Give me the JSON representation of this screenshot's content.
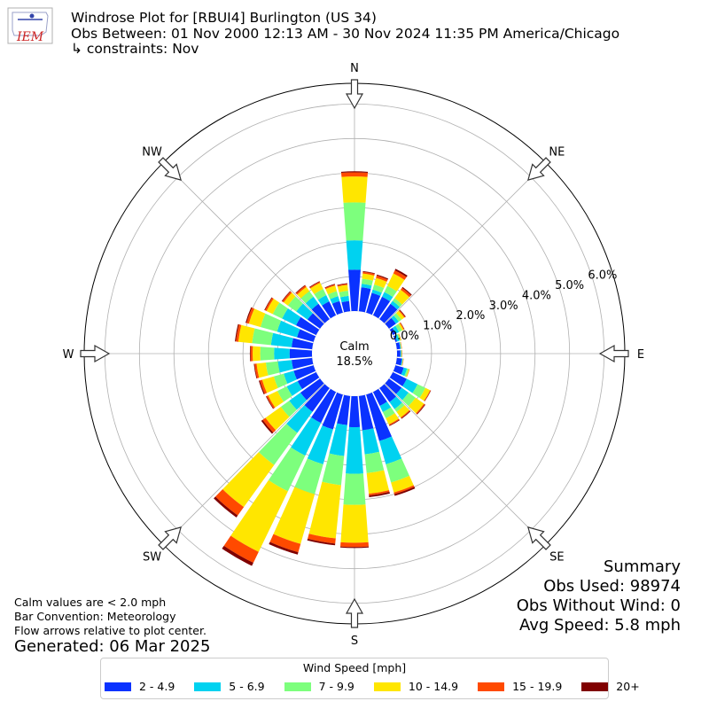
{
  "logo": {
    "text": "IEM"
  },
  "header": {
    "title": "Windrose Plot for [RBUI4] Burlington (US 34)",
    "obs_between": "Obs Between: 01 Nov 2000 12:13 AM - 30 Nov 2024 11:35 PM America/Chicago",
    "constraints": "↳ constraints: Nov"
  },
  "summary": {
    "heading": "Summary",
    "obs_used": "Obs Used: 98974",
    "obs_without_wind": "Obs Without Wind: 0",
    "avg_speed": "Avg Speed: 5.8 mph"
  },
  "notes": {
    "calm_def": "Calm values are < 2.0 mph",
    "bar_convention": "Bar Convention: Meteorology",
    "flow_arrows": "Flow arrows relative to plot center.",
    "generated": "Generated: 06 Mar 2025"
  },
  "legend": {
    "title": "Wind Speed [mph]",
    "items": [
      {
        "label": "2 - 4.9",
        "color": "#0a32ff"
      },
      {
        "label": "5 - 6.9",
        "color": "#00d2f0"
      },
      {
        "label": "7 - 9.9",
        "color": "#7dff7d"
      },
      {
        "label": "10 - 14.9",
        "color": "#ffe600"
      },
      {
        "label": "15 - 19.9",
        "color": "#ff4a00"
      },
      {
        "label": "20+",
        "color": "#800000"
      }
    ]
  },
  "chart_data": {
    "type": "windrose",
    "title": "Windrose Plot for [RBUI4] Burlington (US 34)",
    "calm": {
      "label": "Calm",
      "value": "18.5%"
    },
    "radial_labels": [
      "0.0%",
      "1.0%",
      "2.0%",
      "3.0%",
      "4.0%",
      "5.0%",
      "6.0%"
    ],
    "rlim": [
      0,
      6.6
    ],
    "direction_labels": [
      "N",
      "NE",
      "E",
      "SE",
      "S",
      "SW",
      "W",
      "NW"
    ],
    "speed_bins": [
      "2 - 4.9",
      "5 - 6.9",
      "7 - 9.9",
      "10 - 14.9",
      "15 - 19.9",
      "20+"
    ],
    "colors": [
      "#0a32ff",
      "#00d2f0",
      "#7dff7d",
      "#ffe600",
      "#ff4a00",
      "#800000"
    ],
    "bar_convention": "Meteorology",
    "directions": [
      {
        "dir": 0,
        "cum": [
          1.2,
          2.05,
          3.15,
          3.9,
          4.02,
          4.05
        ]
      },
      {
        "dir": 10,
        "cum": [
          0.7,
          0.8,
          0.95,
          1.1,
          1.15,
          1.17
        ]
      },
      {
        "dir": 20,
        "cum": [
          0.6,
          0.7,
          0.85,
          1.05,
          1.12,
          1.15
        ]
      },
      {
        "dir": 30,
        "cum": [
          0.6,
          0.75,
          0.95,
          1.35,
          1.45,
          1.5
        ]
      },
      {
        "dir": 40,
        "cum": [
          0.55,
          0.65,
          0.75,
          1.05,
          1.12,
          1.15
        ]
      },
      {
        "dir": 50,
        "cum": [
          0.25,
          0.35,
          0.45,
          0.55,
          0.58,
          0.6
        ]
      },
      {
        "dir": 60,
        "cum": [
          0.1,
          0.2,
          0.3,
          0.35,
          0.37,
          0.38
        ]
      },
      {
        "dir": 70,
        "cum": [
          0.05,
          0.12,
          0.15,
          0.17,
          0.18,
          0.18
        ]
      },
      {
        "dir": 80,
        "cum": [
          0.1,
          0.12,
          0.13,
          0.14,
          0.15,
          0.15
        ]
      },
      {
        "dir": 90,
        "cum": [
          0.1,
          0.12,
          0.13,
          0.14,
          0.15,
          0.15
        ]
      },
      {
        "dir": 100,
        "cum": [
          0.15,
          0.17,
          0.18,
          0.19,
          0.2,
          0.2
        ]
      },
      {
        "dir": 110,
        "cum": [
          0.25,
          0.35,
          0.4,
          0.42,
          0.43,
          0.43
        ]
      },
      {
        "dir": 120,
        "cum": [
          0.45,
          0.8,
          1.05,
          1.2,
          1.22,
          1.23
        ]
      },
      {
        "dir": 130,
        "cum": [
          0.45,
          0.7,
          0.95,
          1.25,
          1.28,
          1.3
        ]
      },
      {
        "dir": 140,
        "cum": [
          0.5,
          0.75,
          0.85,
          1.05,
          1.08,
          1.1
        ]
      },
      {
        "dir": 150,
        "cum": [
          0.45,
          0.65,
          0.85,
          1.05,
          1.08,
          1.1
        ]
      },
      {
        "dir": 160,
        "cum": [
          1.4,
          2.1,
          2.65,
          2.95,
          3.0,
          3.05
        ]
      },
      {
        "dir": 170,
        "cum": [
          1.0,
          1.7,
          2.25,
          2.85,
          2.9,
          2.95
        ]
      },
      {
        "dir": 180,
        "cum": [
          0.9,
          2.25,
          3.15,
          4.25,
          4.37,
          4.4
        ]
      },
      {
        "dir": 190,
        "cum": [
          0.85,
          1.75,
          2.6,
          4.15,
          4.3,
          4.35
        ]
      },
      {
        "dir": 200,
        "cum": [
          1.05,
          2.1,
          3.0,
          4.5,
          4.75,
          4.82
        ]
      },
      {
        "dir": 210,
        "cum": [
          1.0,
          2.05,
          3.2,
          5.15,
          5.5,
          5.6
        ]
      },
      {
        "dir": 220,
        "cum": [
          0.85,
          1.6,
          2.75,
          4.25,
          4.55,
          4.62
        ]
      },
      {
        "dir": 230,
        "cum": [
          0.7,
          1.1,
          1.4,
          1.95,
          2.05,
          2.1
        ]
      },
      {
        "dir": 240,
        "cum": [
          0.6,
          0.95,
          1.25,
          1.55,
          1.6,
          1.62
        ]
      },
      {
        "dir": 250,
        "cum": [
          0.6,
          0.9,
          1.2,
          1.55,
          1.62,
          1.65
        ]
      },
      {
        "dir": 260,
        "cum": [
          0.6,
          1.0,
          1.35,
          1.62,
          1.68,
          1.7
        ]
      },
      {
        "dir": 270,
        "cum": [
          0.65,
          1.1,
          1.5,
          1.72,
          1.78,
          1.8
        ]
      },
      {
        "dir": 280,
        "cum": [
          0.6,
          1.2,
          1.75,
          2.15,
          2.22,
          2.25
        ]
      },
      {
        "dir": 290,
        "cum": [
          0.5,
          1.1,
          1.6,
          1.95,
          2.02,
          2.05
        ]
      },
      {
        "dir": 300,
        "cum": [
          0.65,
          1.1,
          1.4,
          1.6,
          1.65,
          1.67
        ]
      },
      {
        "dir": 310,
        "cum": [
          0.45,
          0.85,
          1.15,
          1.3,
          1.35,
          1.37
        ]
      },
      {
        "dir": 320,
        "cum": [
          0.55,
          0.8,
          1.0,
          1.15,
          1.2,
          1.22
        ]
      },
      {
        "dir": 330,
        "cum": [
          0.45,
          0.65,
          0.85,
          1.05,
          1.08,
          1.1
        ]
      },
      {
        "dir": 340,
        "cum": [
          0.35,
          0.5,
          0.65,
          0.82,
          0.85,
          0.87
        ]
      },
      {
        "dir": 350,
        "cum": [
          0.3,
          0.45,
          0.6,
          0.77,
          0.8,
          0.82
        ]
      }
    ]
  }
}
